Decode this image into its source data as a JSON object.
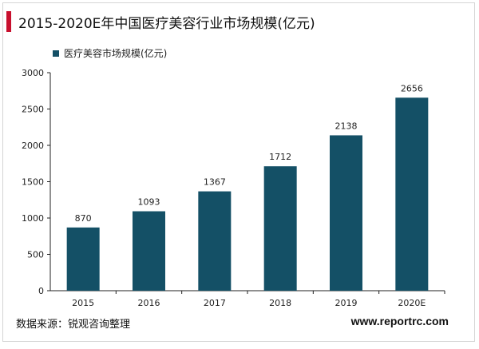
{
  "page": {
    "title": "2015-2020E年中国医疗美容行业市场规模(亿元)",
    "source": "数据来源：锐观咨询整理",
    "url": "www.reportrc.com"
  },
  "colors": {
    "bar": "#145066",
    "title_accent": "#c8102e",
    "axis": "#222222"
  },
  "chart_data": {
    "type": "bar",
    "title": "",
    "xlabel": "",
    "ylabel": "",
    "categories": [
      "2015",
      "2016",
      "2017",
      "2018",
      "2019",
      "2020E"
    ],
    "series": [
      {
        "name": "医疗美容市场规模(亿元)",
        "values": [
          870,
          1093,
          1367,
          1712,
          2138,
          2656
        ]
      }
    ],
    "ylim": [
      0,
      3000
    ],
    "yticks": [
      "0",
      "500",
      "1000",
      "1500",
      "2000",
      "2500",
      "3000"
    ],
    "data_labels": [
      "870",
      "1093",
      "1367",
      "1712",
      "2138",
      "2656"
    ],
    "grid": false,
    "legend_position": "top-left"
  }
}
